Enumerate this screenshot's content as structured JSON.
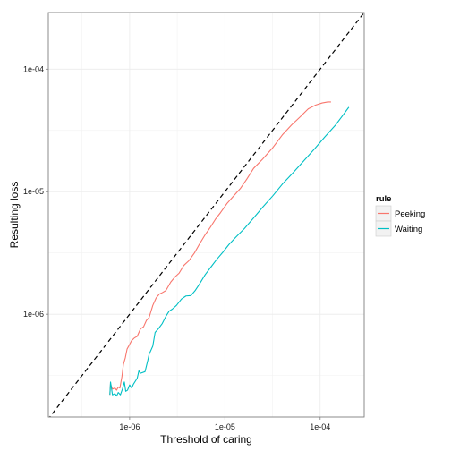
{
  "chart_data": {
    "type": "line",
    "title": "",
    "xlabel": "Threshold of caring",
    "ylabel": "Resulting loss",
    "x_scale": "log10",
    "y_scale": "log10",
    "xlim": [
      1.4e-07,
      0.00029
    ],
    "ylim": [
      1.45e-07,
      0.00029
    ],
    "x_ticks": [
      {
        "value": 1e-06,
        "label": "1e-06"
      },
      {
        "value": 1e-05,
        "label": "1e-05"
      },
      {
        "value": 0.0001,
        "label": "1e-04"
      }
    ],
    "y_ticks": [
      {
        "value": 1e-06,
        "label": "1e-06"
      },
      {
        "value": 1e-05,
        "label": "1e-05"
      },
      {
        "value": 0.0001,
        "label": "1e-04"
      }
    ],
    "grid": true,
    "reference_line": {
      "style": "dashed",
      "color": "#000000",
      "relation": "y = x"
    },
    "legend": {
      "title": "rule",
      "position": "right"
    },
    "series": [
      {
        "name": "Peeking",
        "color": "#F8766D",
        "points": [
          [
            6.2e-07,
            2.2e-07
          ],
          [
            6.3e-07,
            2.7e-07
          ],
          [
            6.6e-07,
            2.45e-07
          ],
          [
            7e-07,
            2.5e-07
          ],
          [
            7.3e-07,
            2.4e-07
          ],
          [
            7.6e-07,
            2.55e-07
          ],
          [
            7.9e-07,
            2.5e-07
          ],
          [
            8.3e-07,
            3.1e-07
          ],
          [
            8.6e-07,
            3.9e-07
          ],
          [
            9e-07,
            4.4e-07
          ],
          [
            9.4e-07,
            5.2e-07
          ],
          [
            9.9e-07,
            5.6e-07
          ],
          [
            1.05e-06,
            6.1e-07
          ],
          [
            1.12e-06,
            6.4e-07
          ],
          [
            1.2e-06,
            6.6e-07
          ],
          [
            1.3e-06,
            7.6e-07
          ],
          [
            1.4e-06,
            7.9e-07
          ],
          [
            1.5e-06,
            8.9e-07
          ],
          [
            1.6e-06,
            9.4e-07
          ],
          [
            1.75e-06,
            1.18e-06
          ],
          [
            1.9e-06,
            1.36e-06
          ],
          [
            2.05e-06,
            1.46e-06
          ],
          [
            2.2e-06,
            1.5e-06
          ],
          [
            2.4e-06,
            1.56e-06
          ],
          [
            2.7e-06,
            1.83e-06
          ],
          [
            3e-06,
            2.02e-06
          ],
          [
            3.3e-06,
            2.16e-06
          ],
          [
            3.7e-06,
            2.5e-06
          ],
          [
            4.2e-06,
            2.74e-06
          ],
          [
            4.8e-06,
            3.17e-06
          ],
          [
            5.4e-06,
            3.73e-06
          ],
          [
            6.2e-06,
            4.45e-06
          ],
          [
            7e-06,
            5.1e-06
          ],
          [
            8e-06,
            6e-06
          ],
          [
            9e-06,
            6.75e-06
          ],
          [
            1.05e-05,
            8e-06
          ],
          [
            1.2e-05,
            9e-06
          ],
          [
            1.45e-05,
            1.06e-05
          ],
          [
            1.7e-05,
            1.27e-05
          ],
          [
            2e-05,
            1.55e-05
          ],
          [
            2.5e-05,
            1.85e-05
          ],
          [
            3.2e-05,
            2.3e-05
          ],
          [
            4e-05,
            2.9e-05
          ],
          [
            5e-05,
            3.5e-05
          ],
          [
            6.2e-05,
            4.1e-05
          ],
          [
            7.5e-05,
            4.75e-05
          ],
          [
            9e-05,
            5.1e-05
          ],
          [
            0.000105,
            5.3e-05
          ],
          [
            0.00012,
            5.4e-05
          ],
          [
            0.00013,
            5.4e-05
          ]
        ]
      },
      {
        "name": "Waiting",
        "color": "#00BFC4",
        "points": [
          [
            6.2e-07,
            2.2e-07
          ],
          [
            6.3e-07,
            2.8e-07
          ],
          [
            6.6e-07,
            2.2e-07
          ],
          [
            7e-07,
            2.25e-07
          ],
          [
            7.3e-07,
            2.15e-07
          ],
          [
            7.6e-07,
            2.3e-07
          ],
          [
            8e-07,
            2.2e-07
          ],
          [
            8.4e-07,
            2.45e-07
          ],
          [
            8.8e-07,
            2.8e-07
          ],
          [
            9.1e-07,
            2.35e-07
          ],
          [
            9.5e-07,
            2.4e-07
          ],
          [
            1e-06,
            2.65e-07
          ],
          [
            1.05e-06,
            2.5e-07
          ],
          [
            1.1e-06,
            2.7e-07
          ],
          [
            1.2e-06,
            3e-07
          ],
          [
            1.25e-06,
            3.45e-07
          ],
          [
            1.3e-06,
            3.3e-07
          ],
          [
            1.45e-06,
            3.4e-07
          ],
          [
            1.55e-06,
            4.2e-07
          ],
          [
            1.6e-06,
            4.7e-07
          ],
          [
            1.75e-06,
            5.5e-07
          ],
          [
            1.85e-06,
            7.1e-07
          ],
          [
            2e-06,
            7.6e-07
          ],
          [
            2.2e-06,
            8.4e-07
          ],
          [
            2.4e-06,
            9.6e-07
          ],
          [
            2.6e-06,
            1.06e-06
          ],
          [
            2.8e-06,
            1.1e-06
          ],
          [
            3.1e-06,
            1.18e-06
          ],
          [
            3.5e-06,
            1.33e-06
          ],
          [
            3.9e-06,
            1.41e-06
          ],
          [
            4.4e-06,
            1.42e-06
          ],
          [
            4.9e-06,
            1.57e-06
          ],
          [
            5.4e-06,
            1.76e-06
          ],
          [
            6.2e-06,
            2.1e-06
          ],
          [
            7.2e-06,
            2.45e-06
          ],
          [
            8.2e-06,
            2.8e-06
          ],
          [
            9.5e-06,
            3.2e-06
          ],
          [
            1.1e-05,
            3.7e-06
          ],
          [
            1.3e-05,
            4.25e-06
          ],
          [
            1.6e-05,
            5e-06
          ],
          [
            2e-05,
            6.1e-06
          ],
          [
            2.5e-05,
            7.5e-06
          ],
          [
            3.2e-05,
            9.3e-06
          ],
          [
            4e-05,
            1.15e-05
          ],
          [
            5.2e-05,
            1.43e-05
          ],
          [
            6.8e-05,
            1.8e-05
          ],
          [
            8.8e-05,
            2.25e-05
          ],
          [
            0.000112,
            2.8e-05
          ],
          [
            0.000145,
            3.5e-05
          ],
          [
            0.000175,
            4.25e-05
          ],
          [
            0.0002,
            4.9e-05
          ]
        ]
      }
    ]
  }
}
